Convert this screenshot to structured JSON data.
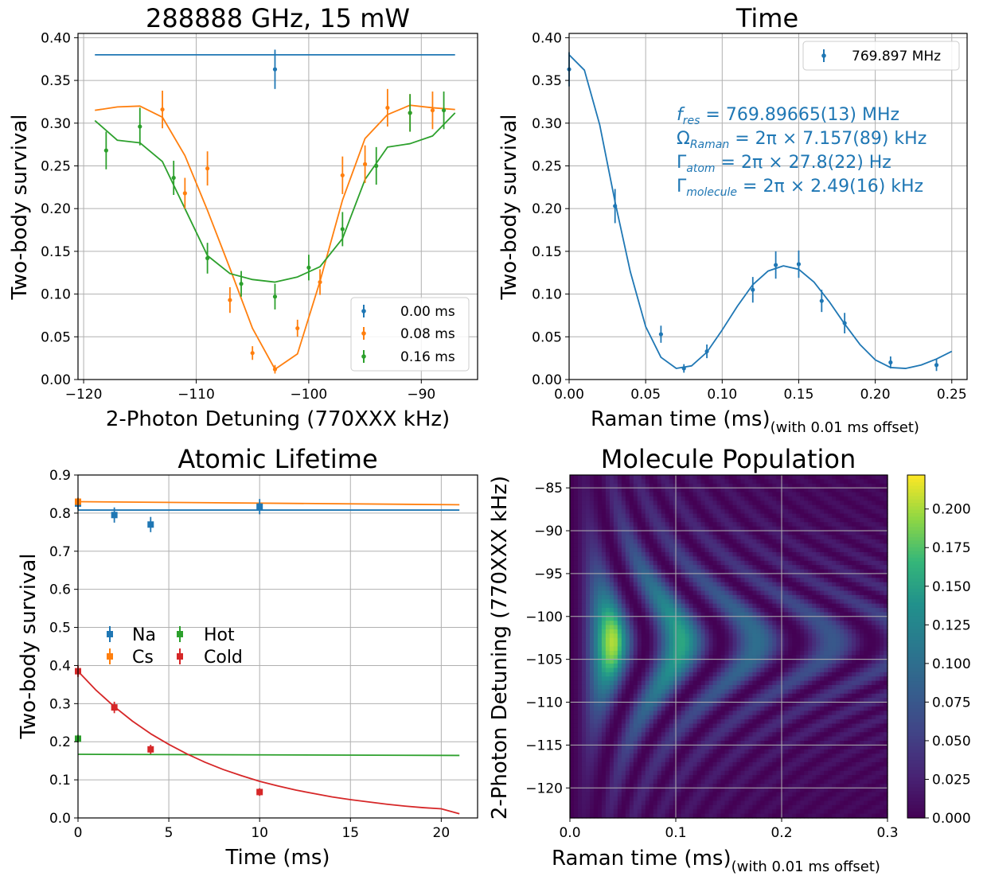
{
  "colors": {
    "blue": "#1f77b4",
    "orange": "#ff7f0e",
    "green": "#2ca02c",
    "red": "#d62728",
    "grid": "#b0b0b0"
  },
  "chart_data": [
    {
      "type": "scatter",
      "title": "288888 GHz, 15 mW",
      "xlabel": "2-Photon Detuning (770XXX kHz)",
      "ylabel": "Two-body survival",
      "xlim": [
        -120.5,
        -85
      ],
      "ylim": [
        0,
        0.405
      ],
      "xticks": [
        -120,
        -110,
        -100,
        -90
      ],
      "xtick_labels": [
        "−120",
        "−110",
        "−100",
        "−90"
      ],
      "yticks": [
        0,
        0.05,
        0.1,
        0.15,
        0.2,
        0.25,
        0.3,
        0.35,
        0.4
      ],
      "ytick_labels": [
        "0.00",
        "0.05",
        "0.10",
        "0.15",
        "0.20",
        "0.25",
        "0.30",
        "0.35",
        "0.40"
      ],
      "grid": true,
      "legend_position": "bottom-right",
      "series": [
        {
          "name": "0.00 ms",
          "color": "blue",
          "x": [
            -103
          ],
          "y": [
            0.363
          ],
          "err": [
            0.023
          ],
          "fit": {
            "x": [
              -119,
              -87
            ],
            "y": [
              0.38,
              0.38
            ]
          }
        },
        {
          "name": "0.08 ms",
          "color": "orange",
          "x": [
            -113,
            -111,
            -109,
            -107,
            -105,
            -103,
            -101,
            -99,
            -97,
            -95,
            -93,
            -91,
            -89
          ],
          "y": [
            0.316,
            0.218,
            0.247,
            0.093,
            0.031,
            0.012,
            0.06,
            0.114,
            0.239,
            0.252,
            0.318,
            0.312,
            0.315
          ],
          "err": [
            0.022,
            0.018,
            0.02,
            0.015,
            0.008,
            0.005,
            0.01,
            0.015,
            0.022,
            0.022,
            0.022,
            0.022,
            0.022
          ],
          "fit": {
            "x": [
              -119,
              -117,
              -115,
              -113,
              -111,
              -109,
              -107,
              -105,
              -103,
              -101,
              -99,
              -97,
              -95,
              -93,
              -91,
              -89,
              -87
            ],
            "y": [
              0.315,
              0.319,
              0.32,
              0.307,
              0.262,
              0.198,
              0.13,
              0.06,
              0.012,
              0.03,
              0.115,
              0.21,
              0.282,
              0.31,
              0.321,
              0.318,
              0.316
            ]
          }
        },
        {
          "name": "0.16 ms",
          "color": "green",
          "x": [
            -118,
            -115,
            -112,
            -109,
            -106,
            -103,
            -100,
            -97,
            -94,
            -91,
            -88
          ],
          "y": [
            0.268,
            0.296,
            0.236,
            0.142,
            0.112,
            0.097,
            0.131,
            0.176,
            0.25,
            0.312,
            0.315
          ],
          "err": [
            0.022,
            0.022,
            0.02,
            0.018,
            0.015,
            0.015,
            0.015,
            0.02,
            0.022,
            0.022,
            0.022
          ],
          "fit": {
            "x": [
              -119,
              -117,
              -115,
              -113,
              -111,
              -109,
              -107,
              -105,
              -103,
              -101,
              -99,
              -97,
              -95,
              -93,
              -91,
              -89,
              -87
            ],
            "y": [
              0.303,
              0.28,
              0.277,
              0.255,
              0.2,
              0.145,
              0.124,
              0.117,
              0.114,
              0.12,
              0.132,
              0.165,
              0.234,
              0.272,
              0.276,
              0.285,
              0.312
            ]
          }
        }
      ]
    },
    {
      "type": "scatter",
      "title": "Time",
      "xlabel": "Raman time (ms)",
      "xlabel_note": "(with 0.01 ms offset)",
      "ylabel": "Two-body survival",
      "xlim": [
        0,
        0.26
      ],
      "ylim": [
        0,
        0.405
      ],
      "xticks": [
        0,
        0.05,
        0.1,
        0.15,
        0.2,
        0.25
      ],
      "xtick_labels": [
        "0.00",
        "0.05",
        "0.10",
        "0.15",
        "0.20",
        "0.25"
      ],
      "yticks": [
        0,
        0.05,
        0.1,
        0.15,
        0.2,
        0.25,
        0.3,
        0.35,
        0.4
      ],
      "ytick_labels": [
        "0.00",
        "0.05",
        "0.10",
        "0.15",
        "0.20",
        "0.25",
        "0.30",
        "0.35",
        "0.40"
      ],
      "grid": true,
      "legend_position": "top-right",
      "annotations": [
        {
          "prefix": "f",
          "sub": "res",
          "rest": " = 769.89665(13) MHz"
        },
        {
          "prefix": "Ω",
          "sub": "Raman",
          "rest": " = 2π × 7.157(89) kHz"
        },
        {
          "prefix": "Γ",
          "sub": "atom",
          "rest": " = 2π × 27.8(22) Hz"
        },
        {
          "prefix": "Γ",
          "sub": "molecule",
          "rest": " = 2π × 2.49(16) kHz"
        }
      ],
      "series": [
        {
          "name": "769.897 MHz",
          "color": "blue",
          "x": [
            0,
            0.03,
            0.06,
            0.075,
            0.09,
            0.12,
            0.135,
            0.15,
            0.165,
            0.18,
            0.21,
            0.24
          ],
          "y": [
            0.363,
            0.203,
            0.053,
            0.013,
            0.033,
            0.105,
            0.134,
            0.135,
            0.092,
            0.066,
            0.02,
            0.017
          ],
          "err": [
            0.02,
            0.02,
            0.01,
            0.005,
            0.008,
            0.015,
            0.016,
            0.016,
            0.013,
            0.012,
            0.007,
            0.007
          ],
          "fit": {
            "x": [
              0,
              0.01,
              0.02,
              0.03,
              0.04,
              0.05,
              0.06,
              0.07,
              0.08,
              0.09,
              0.1,
              0.11,
              0.12,
              0.13,
              0.14,
              0.15,
              0.16,
              0.17,
              0.18,
              0.19,
              0.2,
              0.21,
              0.22,
              0.23,
              0.24,
              0.25
            ],
            "y": [
              0.38,
              0.362,
              0.298,
              0.208,
              0.126,
              0.062,
              0.026,
              0.013,
              0.016,
              0.032,
              0.058,
              0.086,
              0.111,
              0.127,
              0.133,
              0.129,
              0.114,
              0.091,
              0.065,
              0.041,
              0.023,
              0.014,
              0.013,
              0.017,
              0.024,
              0.033
            ]
          }
        }
      ]
    },
    {
      "type": "scatter",
      "title": "Atomic Lifetime",
      "xlabel": "Time (ms)",
      "ylabel": "Two-body survival",
      "xlim": [
        0,
        22
      ],
      "ylim": [
        0,
        0.9
      ],
      "xticks": [
        0,
        5,
        10,
        15,
        20
      ],
      "xtick_labels": [
        "0",
        "5",
        "10",
        "15",
        "20"
      ],
      "yticks": [
        0,
        0.1,
        0.2,
        0.3,
        0.4,
        0.5,
        0.6,
        0.7,
        0.8,
        0.9
      ],
      "ytick_labels": [
        "0.0",
        "0.1",
        "0.2",
        "0.3",
        "0.4",
        "0.5",
        "0.6",
        "0.7",
        "0.8",
        "0.9"
      ],
      "grid": true,
      "legend_position": "center-left",
      "series": [
        {
          "name": "Na",
          "color": "blue",
          "x": [
            0,
            2,
            4,
            10
          ],
          "y": [
            0.825,
            0.795,
            0.77,
            0.817
          ],
          "err": [
            0.015,
            0.02,
            0.02,
            0.02
          ],
          "fit": {
            "x": [
              0,
              21
            ],
            "y": [
              0.808,
              0.808
            ]
          }
        },
        {
          "name": "Cs",
          "color": "orange",
          "x": [
            0
          ],
          "y": [
            0.83
          ],
          "err": [
            0.01
          ],
          "fit": {
            "x": [
              0,
              21
            ],
            "y": [
              0.83,
              0.822
            ]
          }
        },
        {
          "name": "Hot",
          "color": "green",
          "x": [
            0
          ],
          "y": [
            0.208
          ],
          "err": [
            0.01
          ],
          "fit": {
            "x": [
              0,
              21
            ],
            "y": [
              0.167,
              0.164
            ]
          }
        },
        {
          "name": "Cold",
          "color": "red",
          "x": [
            0,
            2,
            4,
            10
          ],
          "y": [
            0.385,
            0.29,
            0.18,
            0.068
          ],
          "err": [
            0.015,
            0.015,
            0.012,
            0.01
          ],
          "fit": {
            "x": [
              0,
              1,
              2,
              3,
              4,
              5,
              6,
              7,
              8,
              9,
              10,
              11,
              12,
              13,
              14,
              15,
              16,
              17,
              18,
              19,
              20,
              21
            ],
            "y": [
              0.385,
              0.335,
              0.292,
              0.254,
              0.221,
              0.193,
              0.168,
              0.146,
              0.127,
              0.111,
              0.096,
              0.084,
              0.073,
              0.064,
              0.055,
              0.048,
              0.042,
              0.036,
              0.031,
              0.027,
              0.024,
              0.011
            ]
          }
        }
      ]
    },
    {
      "type": "heatmap",
      "title": "Molecule Population",
      "xlabel": "Raman time (ms)",
      "xlabel_note": "(with 0.01 ms offset)",
      "ylabel": "2-Photon Detuning (770XXX kHz)",
      "xlim": [
        0,
        0.3
      ],
      "ylim": [
        -123.5,
        -83.5
      ],
      "xticks": [
        0,
        0.1,
        0.2,
        0.3
      ],
      "xtick_labels": [
        "0.0",
        "0.1",
        "0.2",
        "0.3"
      ],
      "yticks": [
        -85,
        -90,
        -95,
        -100,
        -105,
        -110,
        -115,
        -120
      ],
      "ytick_labels": [
        "−85",
        "−90",
        "−95",
        "−100",
        "−105",
        "−110",
        "−115",
        "−120"
      ],
      "center_detuning": -103,
      "peak_time": 0.06,
      "peak_value": 0.222,
      "colormap": "viridis",
      "colorbar": {
        "range": [
          0,
          0.222
        ],
        "ticks": [
          0,
          0.025,
          0.05,
          0.075,
          0.1,
          0.125,
          0.15,
          0.175,
          0.2
        ],
        "tick_labels": [
          "0.000",
          "0.025",
          "0.050",
          "0.075",
          "0.100",
          "0.125",
          "0.150",
          "0.175",
          "0.200"
        ]
      }
    }
  ]
}
